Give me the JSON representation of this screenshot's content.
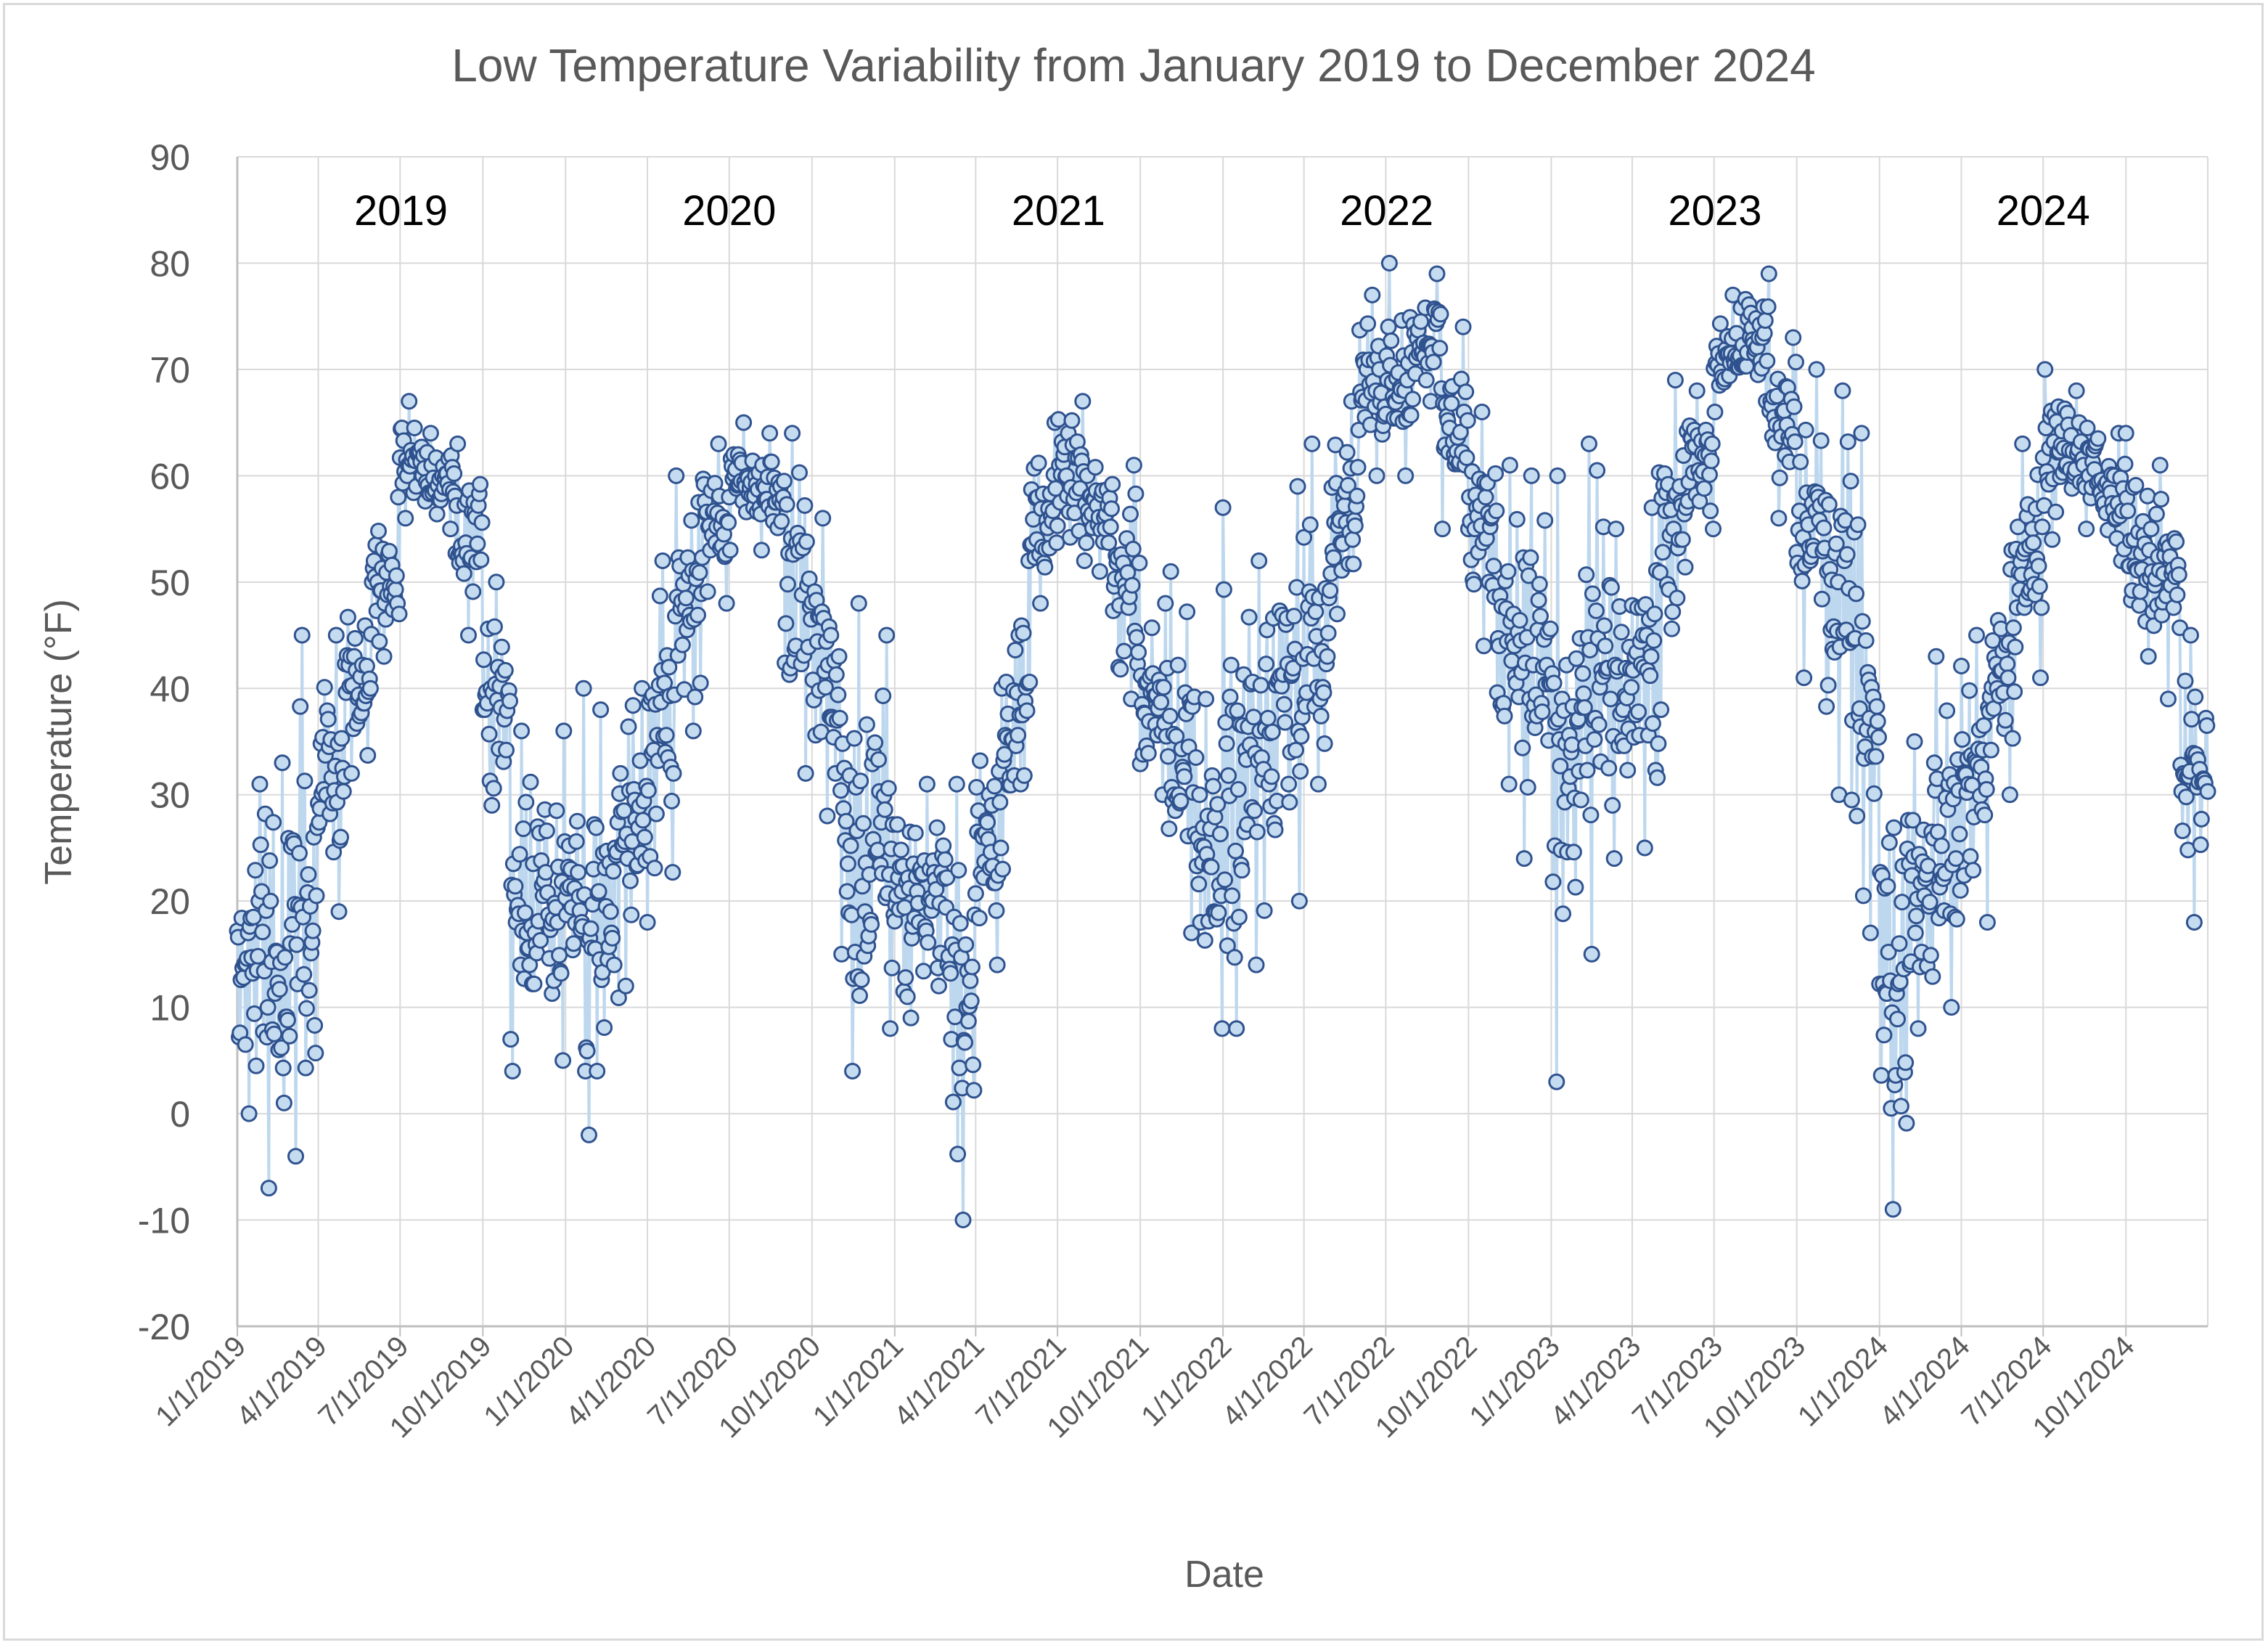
{
  "chart_data": {
    "type": "line",
    "title": "Low Temperature Variability from January 2019 to December 2024",
    "xlabel": "Date",
    "ylabel": "Temperature (°F)",
    "ylim": [
      -20,
      90
    ],
    "yticks": [
      "90",
      "80",
      "70",
      "60",
      "50",
      "40",
      "30",
      "20",
      "10",
      "0",
      "-10",
      "-20"
    ],
    "x_tick_labels": [
      "1/1/2019",
      "4/1/2019",
      "7/1/2019",
      "10/1/2019",
      "1/1/2020",
      "4/1/2020",
      "7/1/2020",
      "10/1/2020",
      "1/1/2021",
      "4/1/2021",
      "7/1/2021",
      "10/1/2021",
      "1/1/2022",
      "4/1/2022",
      "7/1/2022",
      "10/1/2022",
      "1/1/2023",
      "4/1/2023",
      "7/1/2023",
      "10/1/2023",
      "1/1/2024",
      "4/1/2024",
      "7/1/2024",
      "10/1/2024"
    ],
    "year_labels": [
      "2019",
      "2020",
      "2021",
      "2022",
      "2023",
      "2024"
    ],
    "grid": true,
    "series": [
      {
        "name": "Low Temperature",
        "line_color": "#bdd7ee",
        "marker_fill": "#c5dcf0",
        "marker_edge": "#2f528f",
        "monthly_low_range": [
          [
            0,
            31
          ],
          [
            -7,
            33
          ],
          [
            -4,
            45
          ],
          [
            19,
            45
          ],
          [
            32,
            50
          ],
          [
            43,
            58
          ],
          [
            56,
            67
          ],
          [
            55,
            64
          ],
          [
            45,
            63
          ],
          [
            29,
            50
          ],
          [
            4,
            36
          ],
          [
            5,
            36
          ],
          [
            -2,
            40
          ],
          [
            4,
            38
          ],
          [
            12,
            40
          ],
          [
            18,
            52
          ],
          [
            36,
            60
          ],
          [
            48,
            63
          ],
          [
            53,
            65
          ],
          [
            53,
            64
          ],
          [
            32,
            64
          ],
          [
            28,
            56
          ],
          [
            4,
            48
          ],
          [
            8,
            45
          ],
          [
            9,
            32
          ],
          [
            12,
            31
          ],
          [
            -10,
            31
          ],
          [
            14,
            40
          ],
          [
            23,
            52
          ],
          [
            48,
            65
          ],
          [
            52,
            67
          ],
          [
            51,
            62
          ],
          [
            39,
            61
          ],
          [
            30,
            48
          ],
          [
            17,
            51
          ],
          [
            8,
            39
          ],
          [
            8,
            57
          ],
          [
            14,
            52
          ],
          [
            20,
            59
          ],
          [
            31,
            63
          ],
          [
            47,
            67
          ],
          [
            60,
            77
          ],
          [
            60,
            80
          ],
          [
            67,
            79
          ],
          [
            55,
            74
          ],
          [
            44,
            66
          ],
          [
            31,
            61
          ],
          [
            24,
            60
          ],
          [
            3,
            60
          ],
          [
            15,
            63
          ],
          [
            24,
            55
          ],
          [
            25,
            57
          ],
          [
            38,
            69
          ],
          [
            55,
            68
          ],
          [
            66,
            77
          ],
          [
            67,
            79
          ],
          [
            56,
            73
          ],
          [
            41,
            70
          ],
          [
            30,
            68
          ],
          [
            17,
            64
          ],
          [
            -9,
            35
          ],
          [
            8,
            35
          ],
          [
            10,
            43
          ],
          [
            18,
            45
          ],
          [
            30,
            53
          ],
          [
            41,
            63
          ],
          [
            54,
            70
          ],
          [
            55,
            68
          ],
          [
            52,
            64
          ],
          [
            43,
            64
          ],
          [
            39,
            61
          ],
          [
            18,
            45
          ]
        ]
      }
    ]
  }
}
